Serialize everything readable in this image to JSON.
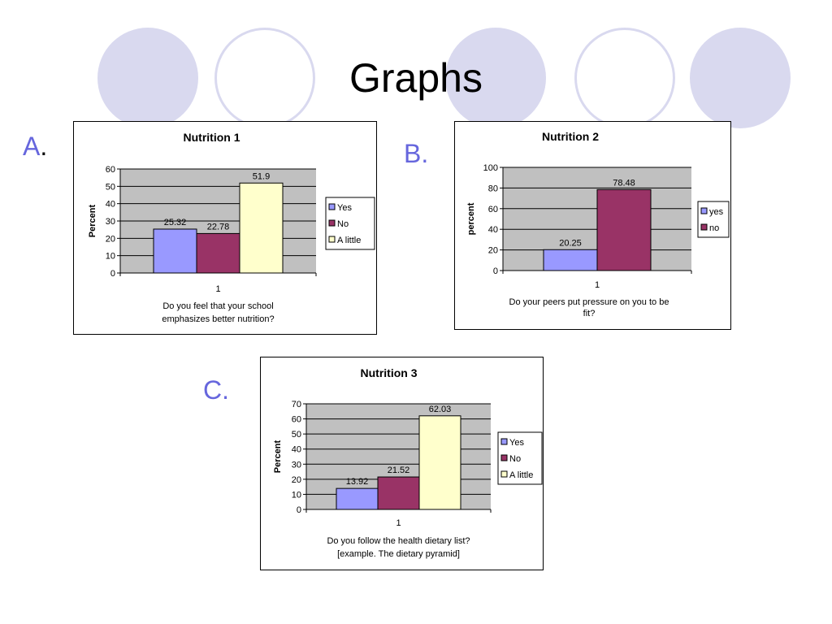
{
  "slide": {
    "title": "Graphs",
    "circle_colors": {
      "filled": "#d9d9ef",
      "accent": "#6666dd"
    }
  },
  "labels": {
    "a": "A",
    "a_dot": ".",
    "b": "B.",
    "c": "C."
  },
  "chart_data": [
    {
      "id": "A",
      "type": "bar",
      "title": "Nutrition 1",
      "ylabel": "Percent",
      "ylim": [
        0,
        60
      ],
      "yticks": [
        0,
        10,
        20,
        30,
        40,
        50,
        60
      ],
      "categories": [
        "1"
      ],
      "xlabel_lines": [
        "Do you feel that your school",
        "emphasizes better nutrition?"
      ],
      "series": [
        {
          "name": "Yes",
          "values": [
            25.32
          ],
          "label": "25.32",
          "color": "#9999ff"
        },
        {
          "name": "No",
          "values": [
            22.78
          ],
          "label": "22.78",
          "color": "#993366"
        },
        {
          "name": "A little",
          "values": [
            51.9
          ],
          "label": "51.9",
          "color": "#ffffcc"
        }
      ],
      "grid": true,
      "plot_bg": "#c0c0c0",
      "legend": "right"
    },
    {
      "id": "B",
      "type": "bar",
      "title": "Nutrition 2",
      "ylabel": "percent",
      "ylim": [
        0,
        100
      ],
      "yticks": [
        0,
        20,
        40,
        60,
        80,
        100
      ],
      "categories": [
        "1"
      ],
      "xlabel_lines": [
        "Do your peers put pressure on you to be",
        "fit?"
      ],
      "series": [
        {
          "name": "yes",
          "values": [
            20.25
          ],
          "label": "20.25",
          "color": "#9999ff"
        },
        {
          "name": "no",
          "values": [
            78.48
          ],
          "label": "78.48",
          "color": "#993366"
        }
      ],
      "grid": true,
      "plot_bg": "#c0c0c0",
      "legend": "right"
    },
    {
      "id": "C",
      "type": "bar",
      "title": "Nutrition 3",
      "ylabel": "Percent",
      "ylim": [
        0,
        70
      ],
      "yticks": [
        0,
        10,
        20,
        30,
        40,
        50,
        60,
        70
      ],
      "categories": [
        "1"
      ],
      "xlabel_lines": [
        "Do you follow the health dietary list?",
        "[example. The dietary pyramid]"
      ],
      "series": [
        {
          "name": "Yes",
          "values": [
            13.92
          ],
          "label": "13.92",
          "color": "#9999ff"
        },
        {
          "name": "No",
          "values": [
            21.52
          ],
          "label": "21.52",
          "color": "#993366"
        },
        {
          "name": "A little",
          "values": [
            62.03
          ],
          "label": "62.03",
          "color": "#ffffcc"
        }
      ],
      "grid": true,
      "plot_bg": "#c0c0c0",
      "legend": "right"
    }
  ]
}
